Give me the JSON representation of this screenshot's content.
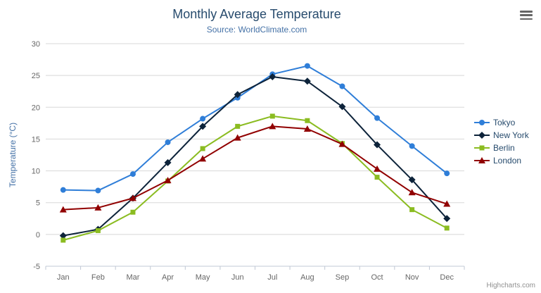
{
  "header": {
    "title": "Monthly Average Temperature",
    "subtitle": "Source: WorldClimate.com"
  },
  "credit": "Highcharts.com",
  "icons": {
    "export_menu": "hamburger-icon"
  },
  "chart_data": {
    "type": "line",
    "title": "Monthly Average Temperature",
    "subtitle": "Source: WorldClimate.com",
    "categories": [
      "Jan",
      "Feb",
      "Mar",
      "Apr",
      "May",
      "Jun",
      "Jul",
      "Aug",
      "Sep",
      "Oct",
      "Nov",
      "Dec"
    ],
    "xlabel": "",
    "ylabel": "Temperature (°C)",
    "ylim": [
      -5,
      30
    ],
    "ytick_interval": 5,
    "grid": true,
    "legend_position": "right",
    "series": [
      {
        "name": "Tokyo",
        "color": "#2f7ed8",
        "marker": "circle",
        "values": [
          7.0,
          6.9,
          9.5,
          14.5,
          18.2,
          21.5,
          25.2,
          26.5,
          23.3,
          18.3,
          13.9,
          9.6
        ]
      },
      {
        "name": "New York",
        "color": "#0d233a",
        "marker": "diamond",
        "values": [
          -0.2,
          0.8,
          5.7,
          11.3,
          17.0,
          22.0,
          24.8,
          24.1,
          20.1,
          14.1,
          8.6,
          2.5
        ]
      },
      {
        "name": "Berlin",
        "color": "#8bbc21",
        "marker": "square",
        "values": [
          -0.9,
          0.6,
          3.5,
          8.4,
          13.5,
          17.0,
          18.6,
          17.9,
          14.3,
          9.0,
          3.9,
          1.0
        ]
      },
      {
        "name": "London",
        "color": "#910000",
        "marker": "triangle",
        "values": [
          3.9,
          4.2,
          5.7,
          8.5,
          11.9,
          15.2,
          17.0,
          16.6,
          14.2,
          10.3,
          6.6,
          4.8
        ]
      }
    ]
  }
}
